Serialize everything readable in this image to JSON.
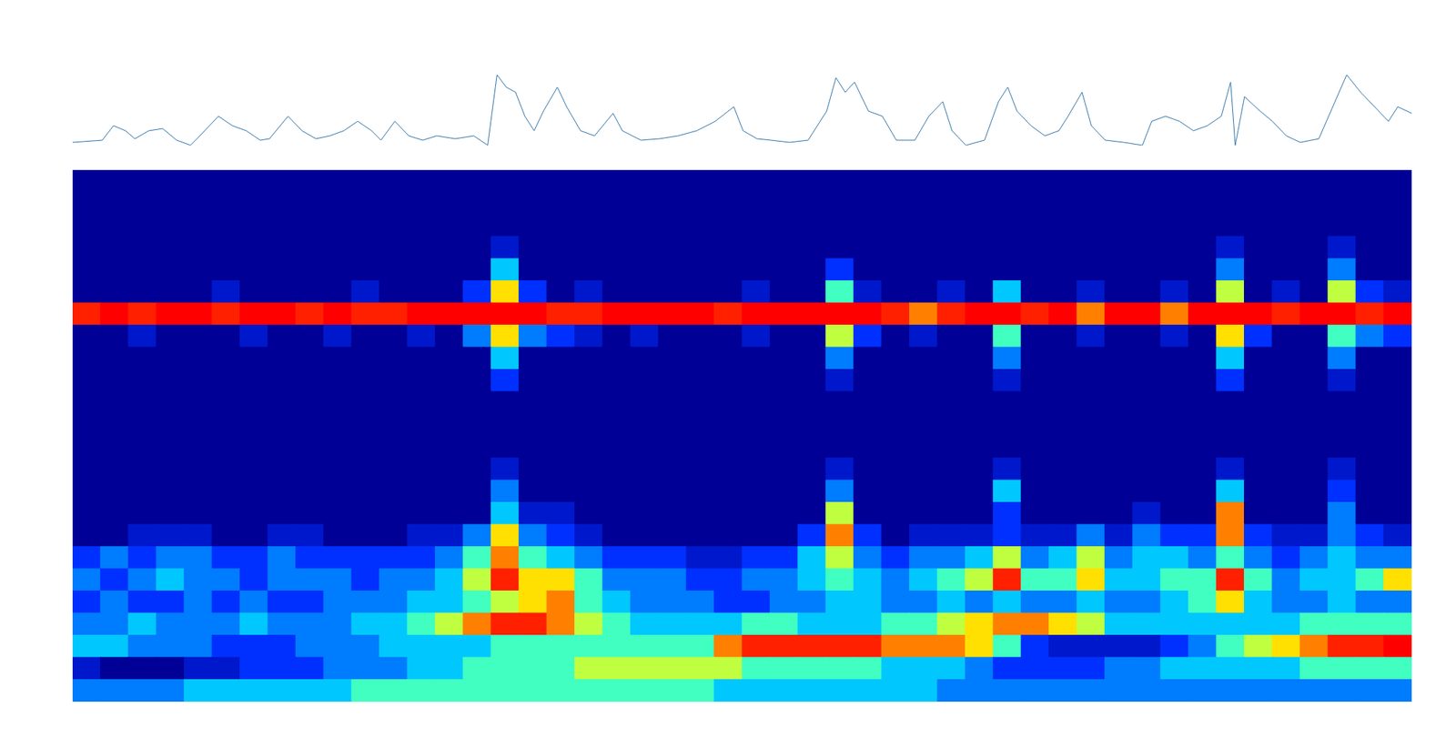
{
  "chart_data": [
    {
      "type": "line",
      "color": "#2f72a6",
      "tick_labels": false,
      "xlim": [
        0,
        1442
      ],
      "ylim": [
        0,
        1
      ],
      "x": [
        0,
        32,
        44,
        57,
        67,
        82,
        97,
        112,
        127,
        137,
        157,
        172,
        187,
        202,
        212,
        232,
        247,
        262,
        277,
        292,
        307,
        322,
        332,
        347,
        362,
        377,
        392,
        412,
        432,
        447,
        457,
        467,
        477,
        487,
        497,
        507,
        522,
        532,
        547,
        562,
        582,
        592,
        612,
        632,
        652,
        672,
        692,
        712,
        722,
        737,
        752,
        772,
        792,
        812,
        822,
        832,
        842,
        857,
        872,
        887,
        907,
        922,
        937,
        947,
        962,
        982,
        997,
        1007,
        1017,
        1032,
        1047,
        1062,
        1072,
        1087,
        1097,
        1112,
        1132,
        1152,
        1162,
        1177,
        1192,
        1207,
        1222,
        1237,
        1247,
        1252,
        1262,
        1277,
        1292,
        1307,
        1322,
        1342,
        1357,
        1372,
        1387,
        1402,
        1417,
        1427,
        1442
      ],
      "values": [
        0.04,
        0.07,
        0.27,
        0.2,
        0.09,
        0.2,
        0.23,
        0.07,
        0,
        0.13,
        0.4,
        0.27,
        0.2,
        0.07,
        0.09,
        0.4,
        0.2,
        0.09,
        0.13,
        0.2,
        0.33,
        0.2,
        0.07,
        0.33,
        0.13,
        0.07,
        0.13,
        0.09,
        0.13,
        0,
        0.97,
        0.8,
        0.73,
        0.4,
        0.2,
        0.47,
        0.8,
        0.53,
        0.2,
        0.13,
        0.44,
        0.2,
        0.07,
        0.09,
        0.13,
        0.2,
        0.33,
        0.53,
        0.2,
        0.09,
        0.07,
        0.04,
        0.07,
        0.47,
        0.93,
        0.73,
        0.87,
        0.47,
        0.4,
        0.07,
        0.07,
        0.4,
        0.6,
        0.2,
        0,
        0.07,
        0.6,
        0.8,
        0.47,
        0.27,
        0.13,
        0.2,
        0.4,
        0.73,
        0.27,
        0.07,
        0.04,
        0,
        0.33,
        0.4,
        0.33,
        0.2,
        0.27,
        0.4,
        0.87,
        0,
        0.67,
        0.49,
        0.33,
        0.13,
        0.04,
        0.09,
        0.53,
        0.97,
        0.73,
        0.53,
        0.33,
        0.53,
        0.44
      ]
    },
    {
      "type": "heatmap",
      "tick_labels": false,
      "xlim": [
        0,
        48
      ],
      "ylim": [
        0,
        24
      ],
      "colorbar_range": [
        0,
        10
      ],
      "cells": [
        [
          0,
          0,
          0,
          0,
          0,
          0,
          0,
          0,
          0,
          0,
          0,
          0,
          0,
          0,
          0,
          0,
          0,
          0,
          0,
          0,
          0,
          0,
          0,
          0,
          0,
          0,
          0,
          0,
          0,
          0,
          0,
          0,
          0,
          0,
          0,
          0,
          0,
          0,
          0,
          0,
          0,
          0,
          0,
          0,
          0,
          0,
          0,
          0
        ],
        [
          0,
          0,
          0,
          0,
          0,
          0,
          0,
          0,
          0,
          0,
          0,
          0,
          0,
          0,
          0,
          0,
          0,
          0,
          0,
          0,
          0,
          0,
          0,
          0,
          0,
          0,
          0,
          0,
          0,
          0,
          0,
          0,
          0,
          0,
          0,
          0,
          0,
          0,
          0,
          0,
          0,
          0,
          0,
          0,
          0,
          0,
          0,
          0
        ],
        [
          0,
          0,
          0,
          0,
          0,
          0,
          0,
          0,
          0,
          0,
          0,
          0,
          0,
          0,
          0,
          0,
          0,
          0,
          0,
          0,
          0,
          0,
          0,
          0,
          0,
          0,
          0,
          0,
          0,
          0,
          0,
          0,
          0,
          0,
          0,
          0,
          0,
          0,
          0,
          0,
          0,
          0,
          0,
          0,
          0,
          0,
          0,
          0
        ],
        [
          0,
          0,
          0,
          0,
          0,
          0,
          0,
          0,
          0,
          0,
          0,
          0,
          0,
          0,
          0,
          1,
          0,
          0,
          0,
          0,
          0,
          0,
          0,
          0,
          0,
          0,
          0,
          0,
          0,
          0,
          0,
          0,
          0,
          0,
          0,
          0,
          0,
          0,
          0,
          0,
          0,
          1,
          0,
          0,
          0,
          1,
          0,
          0
        ],
        [
          0,
          0,
          0,
          0,
          0,
          0,
          0,
          0,
          0,
          0,
          0,
          0,
          0,
          0,
          0,
          4,
          0,
          0,
          0,
          0,
          0,
          0,
          0,
          0,
          0,
          0,
          0,
          2,
          0,
          0,
          0,
          0,
          0,
          0,
          0,
          0,
          0,
          0,
          0,
          0,
          0,
          3,
          0,
          0,
          0,
          3,
          0,
          0
        ],
        [
          0,
          0,
          0,
          0,
          0,
          1,
          0,
          0,
          0,
          0,
          1,
          0,
          0,
          0,
          2,
          7,
          2,
          0,
          1,
          0,
          0,
          0,
          0,
          0,
          1,
          0,
          0,
          5,
          1,
          0,
          0,
          1,
          0,
          4,
          0,
          0,
          1,
          0,
          0,
          1,
          0,
          6,
          0,
          1,
          0,
          6,
          2,
          1
        ],
        [
          9,
          10,
          9,
          10,
          10,
          9,
          10,
          10,
          9,
          10,
          9,
          9,
          10,
          10,
          10,
          10,
          10,
          9,
          9,
          10,
          10,
          10,
          10,
          9,
          10,
          10,
          10,
          10,
          10,
          9,
          8,
          9,
          10,
          10,
          9,
          10,
          8,
          10,
          10,
          8,
          10,
          10,
          10,
          9,
          10,
          10,
          9,
          10
        ],
        [
          0,
          0,
          1,
          0,
          0,
          0,
          1,
          0,
          0,
          1,
          0,
          0,
          1,
          0,
          3,
          7,
          3,
          2,
          1,
          0,
          1,
          0,
          0,
          0,
          1,
          0,
          0,
          6,
          2,
          0,
          1,
          0,
          0,
          5,
          0,
          0,
          1,
          0,
          0,
          1,
          0,
          7,
          2,
          0,
          0,
          5,
          3,
          2
        ],
        [
          0,
          0,
          0,
          0,
          0,
          0,
          0,
          0,
          0,
          0,
          0,
          0,
          0,
          0,
          0,
          4,
          0,
          0,
          0,
          0,
          0,
          0,
          0,
          0,
          0,
          0,
          0,
          3,
          0,
          0,
          0,
          0,
          0,
          3,
          0,
          0,
          0,
          0,
          0,
          0,
          0,
          4,
          0,
          0,
          0,
          3,
          0,
          0
        ],
        [
          0,
          0,
          0,
          0,
          0,
          0,
          0,
          0,
          0,
          0,
          0,
          0,
          0,
          0,
          0,
          2,
          0,
          0,
          0,
          0,
          0,
          0,
          0,
          0,
          0,
          0,
          0,
          1,
          0,
          0,
          0,
          0,
          0,
          1,
          0,
          0,
          0,
          0,
          0,
          0,
          0,
          2,
          0,
          0,
          0,
          1,
          0,
          0
        ],
        [
          0,
          0,
          0,
          0,
          0,
          0,
          0,
          0,
          0,
          0,
          0,
          0,
          0,
          0,
          0,
          0,
          0,
          0,
          0,
          0,
          0,
          0,
          0,
          0,
          0,
          0,
          0,
          0,
          0,
          0,
          0,
          0,
          0,
          0,
          0,
          0,
          0,
          0,
          0,
          0,
          0,
          0,
          0,
          0,
          0,
          0,
          0,
          0
        ],
        [
          0,
          0,
          0,
          0,
          0,
          0,
          0,
          0,
          0,
          0,
          0,
          0,
          0,
          0,
          0,
          0,
          0,
          0,
          0,
          0,
          0,
          0,
          0,
          0,
          0,
          0,
          0,
          0,
          0,
          0,
          0,
          0,
          0,
          0,
          0,
          0,
          0,
          0,
          0,
          0,
          0,
          0,
          0,
          0,
          0,
          0,
          0,
          0
        ],
        [
          0,
          0,
          0,
          0,
          0,
          0,
          0,
          0,
          0,
          0,
          0,
          0,
          0,
          0,
          0,
          0,
          0,
          0,
          0,
          0,
          0,
          0,
          0,
          0,
          0,
          0,
          0,
          0,
          0,
          0,
          0,
          0,
          0,
          0,
          0,
          0,
          0,
          0,
          0,
          0,
          0,
          0,
          0,
          0,
          0,
          0,
          0,
          0
        ],
        [
          0,
          0,
          0,
          0,
          0,
          0,
          0,
          0,
          0,
          0,
          0,
          0,
          0,
          0,
          0,
          1,
          0,
          0,
          0,
          0,
          0,
          0,
          0,
          0,
          0,
          0,
          0,
          1,
          0,
          0,
          0,
          0,
          0,
          1,
          0,
          0,
          0,
          0,
          0,
          0,
          0,
          1,
          0,
          0,
          0,
          1,
          0,
          0
        ],
        [
          0,
          0,
          0,
          0,
          0,
          0,
          0,
          0,
          0,
          0,
          0,
          0,
          0,
          0,
          0,
          3,
          0,
          0,
          0,
          0,
          0,
          0,
          0,
          0,
          0,
          0,
          0,
          3,
          0,
          0,
          0,
          0,
          0,
          4,
          0,
          0,
          0,
          0,
          0,
          0,
          0,
          4,
          0,
          0,
          0,
          2,
          0,
          0
        ],
        [
          0,
          0,
          0,
          0,
          0,
          0,
          0,
          0,
          0,
          0,
          0,
          0,
          0,
          0,
          0,
          4,
          1,
          1,
          0,
          0,
          0,
          0,
          0,
          0,
          0,
          0,
          0,
          6,
          0,
          0,
          0,
          0,
          0,
          2,
          0,
          0,
          0,
          0,
          1,
          0,
          0,
          8,
          0,
          0,
          0,
          3,
          0,
          0
        ],
        [
          0,
          0,
          1,
          1,
          1,
          0,
          0,
          1,
          1,
          0,
          0,
          0,
          1,
          1,
          3,
          7,
          3,
          2,
          1,
          0,
          0,
          0,
          0,
          0,
          0,
          0,
          2,
          8,
          2,
          0,
          1,
          1,
          1,
          2,
          1,
          1,
          3,
          1,
          3,
          2,
          2,
          8,
          2,
          1,
          1,
          3,
          2,
          1
        ],
        [
          2,
          3,
          2,
          3,
          3,
          2,
          2,
          3,
          2,
          2,
          2,
          2,
          2,
          3,
          5,
          8,
          5,
          4,
          3,
          2,
          2,
          2,
          1,
          1,
          2,
          2,
          4,
          6,
          3,
          2,
          3,
          3,
          4,
          6,
          3,
          4,
          6,
          3,
          4,
          4,
          3,
          5,
          3,
          2,
          3,
          4,
          3,
          3
        ],
        [
          3,
          2,
          3,
          4,
          3,
          3,
          2,
          3,
          3,
          3,
          2,
          3,
          3,
          4,
          6,
          9,
          7,
          7,
          5,
          3,
          3,
          3,
          2,
          2,
          3,
          3,
          4,
          5,
          4,
          3,
          4,
          5,
          6,
          9,
          5,
          5,
          7,
          4,
          4,
          5,
          5,
          9,
          5,
          3,
          4,
          4,
          5,
          7
        ],
        [
          2,
          3,
          2,
          2,
          3,
          2,
          3,
          2,
          2,
          3,
          3,
          3,
          4,
          4,
          5,
          6,
          7,
          8,
          5,
          4,
          3,
          3,
          3,
          2,
          2,
          3,
          3,
          4,
          4,
          3,
          3,
          4,
          3,
          4,
          3,
          3,
          4,
          3,
          3,
          4,
          5,
          7,
          4,
          3,
          3,
          4,
          3,
          3
        ],
        [
          3,
          3,
          4,
          3,
          3,
          3,
          4,
          3,
          3,
          3,
          4,
          4,
          5,
          6,
          8,
          9,
          9,
          8,
          6,
          5,
          4,
          4,
          4,
          4,
          5,
          5,
          4,
          4,
          4,
          5,
          5,
          6,
          7,
          8,
          8,
          7,
          6,
          4,
          4,
          4,
          4,
          4,
          4,
          4,
          5,
          5,
          5,
          5
        ],
        [
          4,
          4,
          3,
          3,
          3,
          2,
          2,
          2,
          3,
          3,
          3,
          4,
          4,
          4,
          4,
          5,
          5,
          5,
          5,
          5,
          5,
          5,
          5,
          8,
          9,
          9,
          9,
          9,
          9,
          8,
          8,
          8,
          7,
          5,
          2,
          1,
          1,
          1,
          1,
          2,
          3,
          5,
          6,
          7,
          8,
          9,
          9,
          10
        ],
        [
          1,
          0,
          0,
          0,
          1,
          1,
          2,
          2,
          2,
          3,
          3,
          3,
          4,
          4,
          5,
          5,
          5,
          5,
          6,
          6,
          6,
          6,
          6,
          6,
          5,
          5,
          5,
          5,
          5,
          4,
          4,
          4,
          3,
          2,
          2,
          2,
          2,
          3,
          3,
          4,
          4,
          4,
          4,
          4,
          5,
          5,
          5,
          5
        ],
        [
          3,
          3,
          3,
          3,
          4,
          4,
          4,
          4,
          4,
          4,
          5,
          5,
          5,
          5,
          5,
          5,
          5,
          5,
          5,
          5,
          5,
          5,
          5,
          4,
          4,
          4,
          4,
          4,
          4,
          4,
          4,
          3,
          3,
          3,
          3,
          3,
          3,
          3,
          3,
          3,
          3,
          3,
          3,
          3,
          3,
          3,
          3,
          3
        ]
      ]
    }
  ]
}
